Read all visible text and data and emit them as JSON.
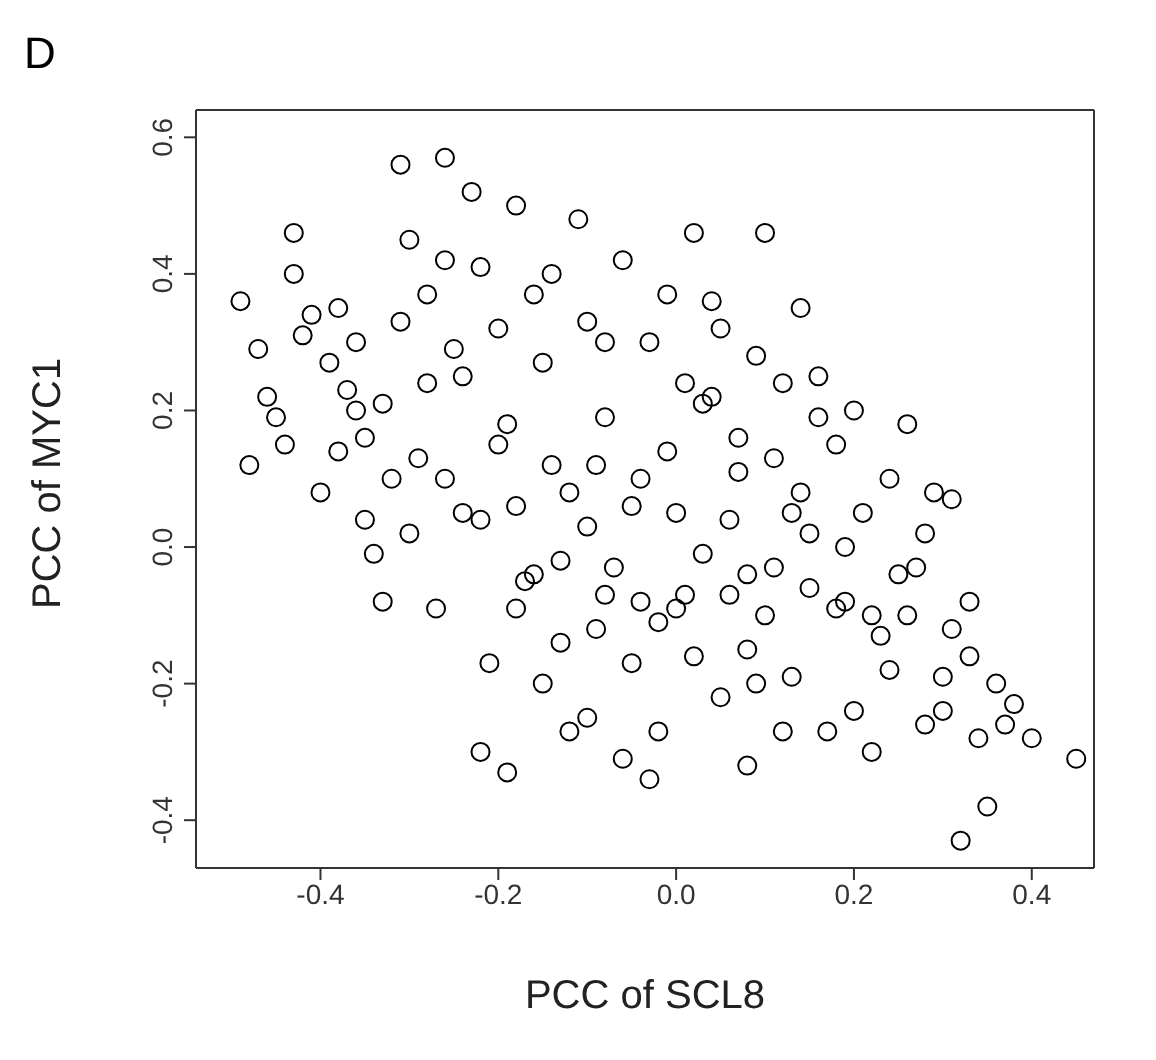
{
  "chart_data": {
    "type": "scatter",
    "title": "D",
    "xlabel": "PCC of SCL8",
    "ylabel": "PCC of MYC1",
    "marker": "circle",
    "grid": false,
    "legend": false,
    "xlim": [
      -0.54,
      0.47
    ],
    "ylim": [
      -0.47,
      0.64
    ],
    "xticks": [
      {
        "value": -0.4,
        "label": "-0.4"
      },
      {
        "value": -0.2,
        "label": "-0.2"
      },
      {
        "value": 0,
        "label": "0.0"
      },
      {
        "value": 0.2,
        "label": "0.2"
      },
      {
        "value": 0.4,
        "label": "0.4"
      }
    ],
    "yticks": [
      {
        "value": -0.4,
        "label": "-0.4"
      },
      {
        "value": -0.2,
        "label": "-0.2"
      },
      {
        "value": 0,
        "label": "0.0"
      },
      {
        "value": 0.2,
        "label": "0.2"
      },
      {
        "value": 0.4,
        "label": "0.4"
      },
      {
        "value": 0.6,
        "label": "0.6"
      }
    ],
    "series": [
      {
        "color": "#000000",
        "x": [
          -0.49,
          -0.48,
          -0.47,
          -0.43,
          -0.43,
          -0.45,
          -0.44,
          -0.46,
          -0.41,
          -0.4,
          -0.42,
          -0.37,
          -0.36,
          -0.38,
          -0.39,
          -0.35,
          -0.33,
          -0.31,
          -0.3,
          -0.31,
          -0.35,
          -0.34,
          -0.33,
          -0.3,
          -0.29,
          -0.26,
          -0.26,
          -0.28,
          -0.27,
          -0.25,
          -0.24,
          -0.23,
          -0.22,
          -0.21,
          -0.2,
          -0.19,
          -0.18,
          -0.18,
          -0.17,
          -0.16,
          -0.15,
          -0.14,
          -0.13,
          -0.12,
          -0.11,
          -0.1,
          -0.1,
          -0.08,
          -0.07,
          -0.06,
          -0.05,
          -0.04,
          -0.03,
          -0.02,
          -0.01,
          0.0,
          0.01,
          0.02,
          0.03,
          0.04,
          0.05,
          0.06,
          0.07,
          0.08,
          0.09,
          0.1,
          0.11,
          0.12,
          0.13,
          0.14,
          0.15,
          0.16,
          0.17,
          0.18,
          0.19,
          0.2,
          0.21,
          0.22,
          0.23,
          0.24,
          0.26,
          0.27,
          0.28,
          0.29,
          0.3,
          0.31,
          0.32,
          0.33,
          0.34,
          0.35,
          0.36,
          0.38,
          0.4,
          0.45,
          -0.22,
          -0.19,
          -0.15,
          -0.1,
          -0.08,
          -0.06,
          -0.03,
          -0.02,
          0.0,
          0.02,
          0.04,
          0.06,
          0.08,
          0.1,
          0.12,
          0.14,
          0.15,
          0.18,
          0.2,
          0.22,
          0.25,
          0.28,
          0.3,
          0.33,
          0.37,
          0.08,
          -0.16,
          -0.12,
          -0.05,
          -0.01,
          0.01,
          -0.09,
          -0.2,
          -0.24,
          -0.28,
          -0.32,
          -0.14,
          -0.08,
          0.05,
          0.07,
          0.11,
          0.16,
          0.19,
          0.24,
          0.03,
          -0.04,
          -0.09,
          -0.13,
          -0.18,
          -0.22,
          -0.26,
          -0.36,
          -0.38,
          0.09,
          0.13,
          0.26,
          0.31
        ],
        "values": [
          0.36,
          0.12,
          0.29,
          0.46,
          0.4,
          0.19,
          0.15,
          0.22,
          0.34,
          0.08,
          0.31,
          0.23,
          0.2,
          0.14,
          0.27,
          0.16,
          0.21,
          0.56,
          0.45,
          0.33,
          0.04,
          -0.01,
          -0.08,
          0.02,
          0.13,
          0.57,
          0.42,
          0.37,
          -0.09,
          0.29,
          0.05,
          0.52,
          0.41,
          -0.17,
          0.32,
          0.18,
          0.5,
          0.06,
          -0.05,
          0.37,
          0.27,
          0.12,
          -0.14,
          -0.27,
          0.48,
          0.33,
          0.03,
          0.19,
          -0.03,
          0.42,
          -0.17,
          0.1,
          0.3,
          -0.11,
          0.37,
          0.05,
          -0.07,
          0.46,
          0.21,
          0.36,
          -0.22,
          0.04,
          0.16,
          -0.15,
          0.28,
          0.46,
          -0.03,
          0.24,
          -0.19,
          0.08,
          0.02,
          0.19,
          -0.27,
          0.15,
          -0.08,
          0.2,
          0.05,
          -0.3,
          -0.13,
          0.1,
          0.18,
          -0.03,
          -0.26,
          0.08,
          -0.19,
          -0.12,
          -0.43,
          -0.08,
          -0.28,
          -0.38,
          -0.2,
          -0.23,
          -0.28,
          -0.31,
          -0.3,
          -0.33,
          -0.2,
          -0.25,
          -0.07,
          -0.31,
          -0.34,
          -0.27,
          -0.09,
          -0.16,
          0.22,
          -0.07,
          -0.04,
          -0.1,
          -0.27,
          0.35,
          -0.06,
          -0.09,
          -0.24,
          -0.1,
          -0.04,
          0.02,
          -0.24,
          -0.16,
          -0.26,
          -0.32,
          -0.04,
          0.08,
          0.06,
          0.14,
          0.24,
          0.12,
          0.15,
          0.25,
          0.24,
          0.1,
          0.4,
          0.3,
          0.32,
          0.11,
          0.13,
          0.25,
          0.0,
          -0.18,
          -0.01,
          -0.08,
          -0.12,
          -0.02,
          -0.09,
          0.04,
          0.1,
          0.3,
          0.35,
          -0.2,
          0.05,
          -0.1,
          0.07
        ]
      }
    ]
  }
}
